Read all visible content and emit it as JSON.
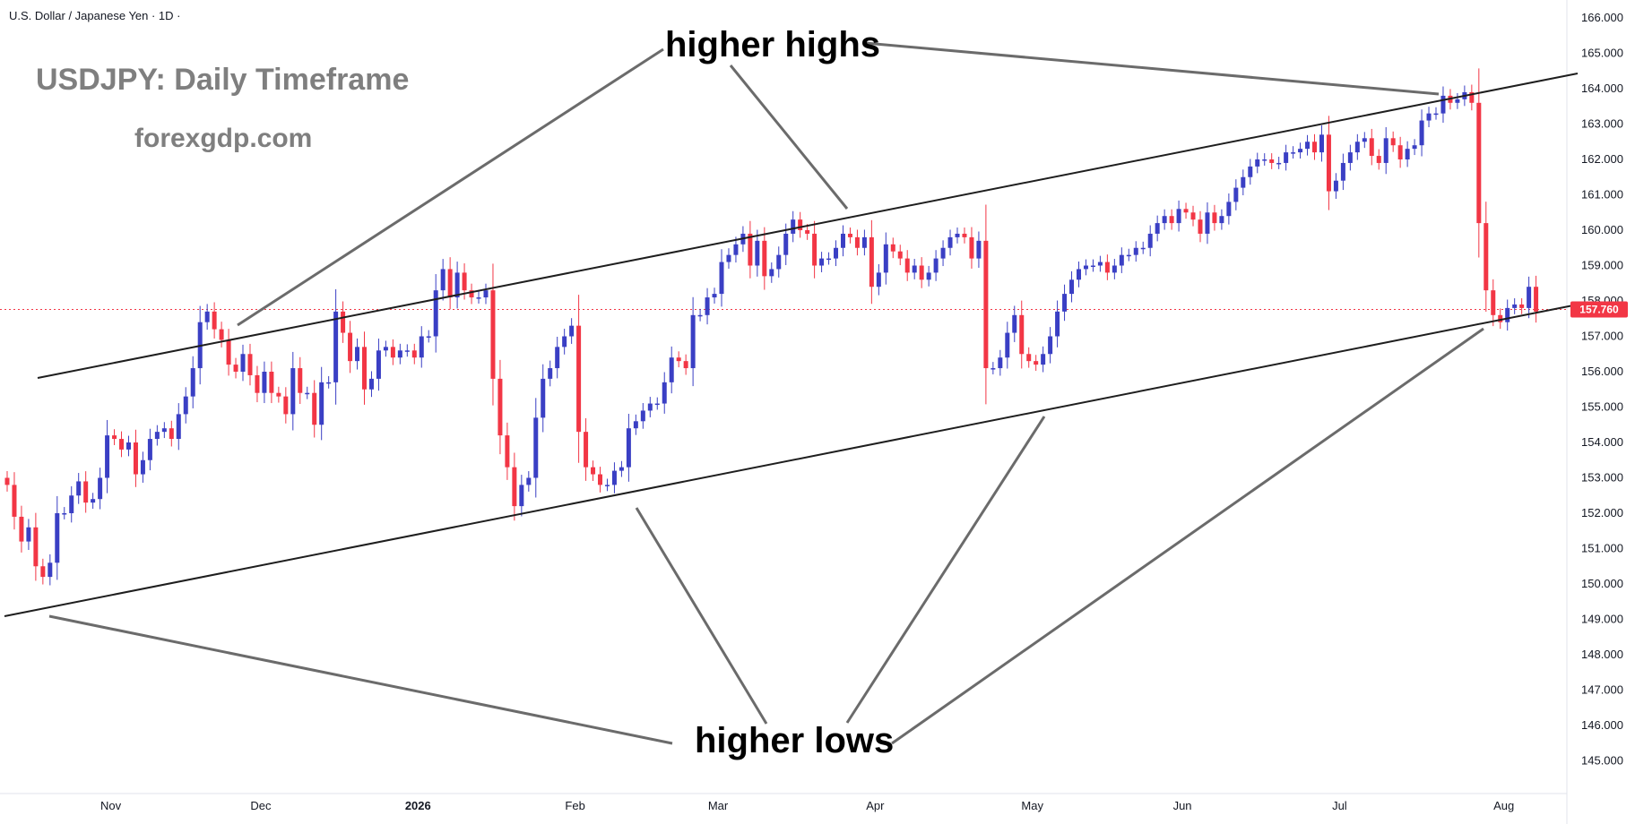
{
  "symbol_line": "U.S. Dollar / Japanese Yen · 1D ·",
  "overlay": {
    "title": "USDJPY: Daily Timeframe",
    "site": "forexgdp.com",
    "annotation_highs": "higher highs",
    "annotation_lows": "higher lows"
  },
  "colors": {
    "up": "#3a3fc4",
    "down": "#f23645",
    "price_badge": "#f23645",
    "line": "#1e1e1e",
    "pointer": "#6b6b6b"
  },
  "chart_data": {
    "type": "candlestick",
    "title": "USDJPY: Daily Timeframe",
    "ylim": [
      144.5,
      166.4
    ],
    "y_ticks": [
      "166.000",
      "165.000",
      "164.000",
      "163.000",
      "162.000",
      "161.000",
      "160.000",
      "159.000",
      "158.000",
      "157.000",
      "156.000",
      "155.000",
      "154.000",
      "153.000",
      "152.000",
      "151.000",
      "150.000",
      "149.000",
      "148.000",
      "147.000",
      "146.000",
      "145.000"
    ],
    "x_ticks": [
      {
        "label": "Nov",
        "idx": 14.5
      },
      {
        "label": "Dec",
        "idx": 35.5
      },
      {
        "label": "2026",
        "idx": 57.5
      },
      {
        "label": "Feb",
        "idx": 79.5
      },
      {
        "label": "Mar",
        "idx": 99.5
      },
      {
        "label": "Apr",
        "idx": 121.5
      },
      {
        "label": "May",
        "idx": 143.5
      },
      {
        "label": "Jun",
        "idx": 164.5
      },
      {
        "label": "Jul",
        "idx": 186.5
      },
      {
        "label": "Aug",
        "idx": 209.5
      }
    ],
    "last_price": "157.760",
    "last_price_value": 157.76,
    "candles_close": [
      152.8,
      151.9,
      151.2,
      151.6,
      150.5,
      150.2,
      150.6,
      152.0,
      152.0,
      152.5,
      152.9,
      152.3,
      152.4,
      153.0,
      154.2,
      154.1,
      153.8,
      154.0,
      153.1,
      153.5,
      154.1,
      154.3,
      154.4,
      154.1,
      154.8,
      155.3,
      156.1,
      157.4,
      157.7,
      157.2,
      156.9,
      156.2,
      156.0,
      156.5,
      155.9,
      155.4,
      156.0,
      155.4,
      155.3,
      154.8,
      156.1,
      155.4,
      155.4,
      154.5,
      155.7,
      155.7,
      157.7,
      157.1,
      156.3,
      156.7,
      155.5,
      155.8,
      156.6,
      156.7,
      156.4,
      156.6,
      156.6,
      156.4,
      157.0,
      157.0,
      158.3,
      158.9,
      158.1,
      158.8,
      158.3,
      158.1,
      158.1,
      158.3,
      155.8,
      154.2,
      153.3,
      152.2,
      152.8,
      153.0,
      154.7,
      155.8,
      156.1,
      156.7,
      157.0,
      157.3,
      154.3,
      153.3,
      153.1,
      152.8,
      152.8,
      153.2,
      153.3,
      154.4,
      154.6,
      154.9,
      155.1,
      155.1,
      155.7,
      156.4,
      156.3,
      156.1,
      157.6,
      157.6,
      158.1,
      158.2,
      159.1,
      159.3,
      159.6,
      159.9,
      159.0,
      159.7,
      158.7,
      158.9,
      159.3,
      159.9,
      160.3,
      160.0,
      159.9,
      159.0,
      159.2,
      159.2,
      159.5,
      159.9,
      159.8,
      159.5,
      159.8,
      158.4,
      158.8,
      159.6,
      159.4,
      159.2,
      158.8,
      159.0,
      158.6,
      158.8,
      159.2,
      159.5,
      159.8,
      159.9,
      159.8,
      159.2,
      159.7,
      156.1,
      156.1,
      156.4,
      157.1,
      157.6,
      156.5,
      156.3,
      156.2,
      156.5,
      157.0,
      157.7,
      158.2,
      158.6,
      158.9,
      159.0,
      159.0,
      159.1,
      158.8,
      159.0,
      159.3,
      159.3,
      159.5,
      159.5,
      159.9,
      160.2,
      160.4,
      160.2,
      160.6,
      160.5,
      160.3,
      159.9,
      160.5,
      160.2,
      160.4,
      160.8,
      161.2,
      161.5,
      161.8,
      162.0,
      162.0,
      161.9,
      161.9,
      162.2,
      162.2,
      162.3,
      162.5,
      162.2,
      162.7,
      161.1,
      161.4,
      161.9,
      162.2,
      162.5,
      162.6,
      162.1,
      161.9,
      162.6,
      162.4,
      162.0,
      162.3,
      162.4,
      163.1,
      163.3,
      163.3,
      163.8,
      163.6,
      163.7,
      163.9,
      163.6,
      160.2,
      158.3,
      157.6,
      157.4,
      157.8,
      157.9,
      157.8,
      158.4,
      157.7
    ]
  }
}
